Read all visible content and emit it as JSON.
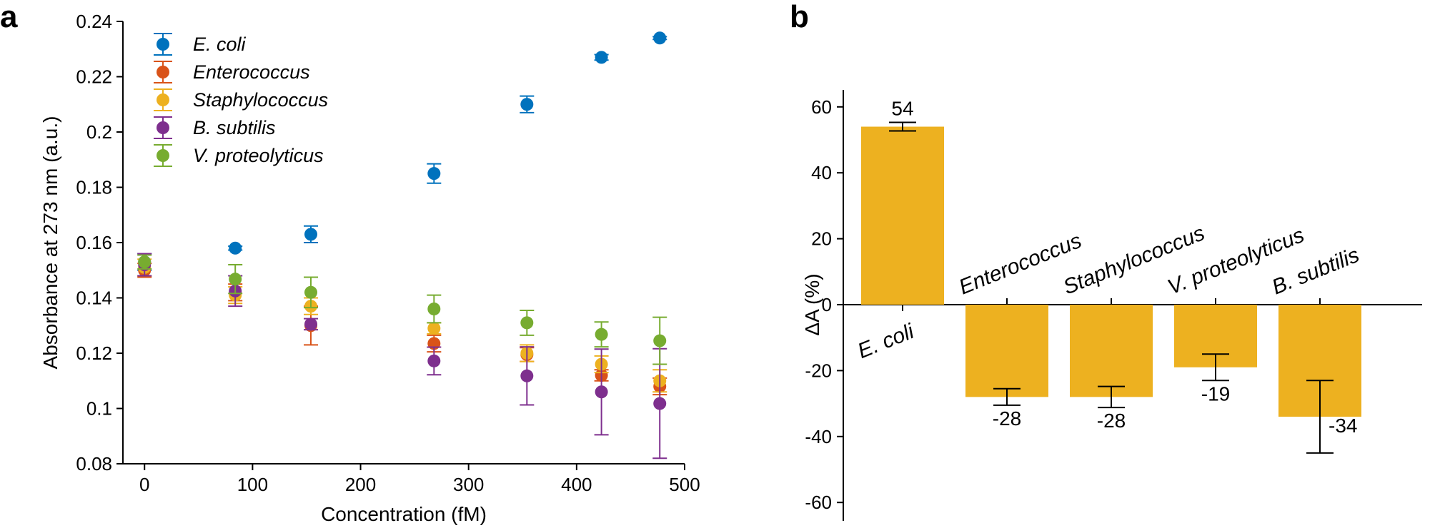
{
  "panels": {
    "a": "a",
    "b": "b"
  },
  "chart_data": [
    {
      "id": "a",
      "type": "scatter",
      "title": "",
      "xlabel": "Concentration (fM)",
      "ylabel": "Absorbance at 273 nm (a.u.)",
      "xlim": [
        -20,
        500
      ],
      "ylim": [
        0.08,
        0.24
      ],
      "xticks": [
        0,
        100,
        200,
        300,
        400,
        500
      ],
      "yticks": [
        0.08,
        0.1,
        0.12,
        0.14,
        0.16,
        0.18,
        0.2,
        0.22,
        0.24
      ],
      "ytick_labels": [
        "0.08",
        "0.1",
        "0.12",
        "0.14",
        "0.16",
        "0.18",
        "0.2",
        "0.22",
        "0.24"
      ],
      "legend_position": "top-left",
      "x": [
        0,
        84,
        154,
        268,
        354,
        423,
        477
      ],
      "series": [
        {
          "name": "E. coli",
          "color": "#0072BD",
          "values": [
            0.153,
            0.158,
            0.163,
            0.185,
            0.21,
            0.227,
            0.234
          ],
          "errors": [
            0.003,
            0.0007,
            0.003,
            0.0035,
            0.003,
            0.001,
            0.0005
          ]
        },
        {
          "name": "Enterococcus",
          "color": "#D95319",
          "values": [
            0.15,
            0.142,
            0.13,
            0.1235,
            0.1195,
            0.112,
            0.108
          ],
          "errors": [
            0.0025,
            0.003,
            0.007,
            0.003,
            0.0025,
            0.002,
            0.003
          ]
        },
        {
          "name": "Staphylococcus",
          "color": "#EDB120",
          "values": [
            0.151,
            0.141,
            0.137,
            0.129,
            0.12,
            0.116,
            0.11
          ],
          "errors": [
            0.003,
            0.003,
            0.003,
            0.002,
            0.003,
            0.003,
            0.004
          ]
        },
        {
          "name": "B. subtilis",
          "color": "#7E2F8E",
          "values": [
            0.152,
            0.1425,
            0.1305,
            0.1172,
            0.1118,
            0.106,
            0.1018
          ],
          "errors": [
            0.004,
            0.0055,
            0.002,
            0.005,
            0.0105,
            0.0155,
            0.0198
          ]
        },
        {
          "name": "V. proteolyticus",
          "color": "#77AC30",
          "values": [
            0.153,
            0.1468,
            0.142,
            0.136,
            0.131,
            0.1268,
            0.1245
          ],
          "errors": [
            0.0025,
            0.0052,
            0.0055,
            0.005,
            0.0045,
            0.0045,
            0.0085
          ]
        }
      ]
    },
    {
      "id": "b",
      "type": "bar",
      "title": "",
      "xlabel": "",
      "ylabel": "ΔA (%)",
      "ylim": [
        -65,
        65
      ],
      "yticks": [
        -60,
        -40,
        -20,
        0,
        20,
        40,
        60
      ],
      "categories": [
        "E. coli",
        "Enterococcus",
        "Staphylococcus",
        "V. proteolyticus",
        "B. subtilis"
      ],
      "values": [
        54,
        -28,
        -28,
        -19,
        -34
      ],
      "value_labels": [
        "54",
        "-28",
        "-28",
        "-19",
        "-34"
      ],
      "errors": [
        1.3,
        2.5,
        3.2,
        4.0,
        11.0
      ],
      "bar_color": "#EDB120"
    }
  ]
}
